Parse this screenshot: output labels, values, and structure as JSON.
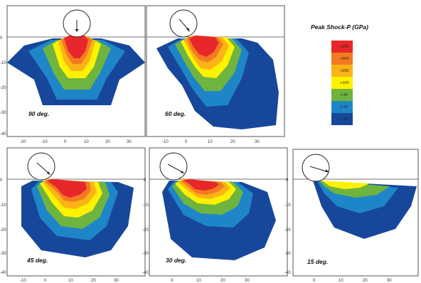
{
  "legend": {
    "title": "Peak Shock-P (GPa)",
    "items": [
      {
        "label": ">250",
        "color": "#e8272a"
      },
      {
        "label": ">200",
        "color": "#f47a21"
      },
      {
        "label": ">150",
        "color": "#fbb316"
      },
      {
        "label": ">100",
        "color": "#fff200"
      },
      {
        "label": "> 50",
        "color": "#6fb43f"
      },
      {
        "label": "> 30",
        "color": "#1e86c8"
      },
      {
        "label": "> 10",
        "color": "#17479b"
      }
    ]
  },
  "panels": [
    {
      "id": "p90",
      "label": "90 deg.",
      "angle": 90,
      "y_ticks": [
        "0",
        "-10",
        "-20",
        "-30",
        "-40"
      ],
      "x_ticks": [
        "-20",
        "-10",
        "0",
        "10",
        "20",
        "30"
      ]
    },
    {
      "id": "p60",
      "label": "60 deg.",
      "angle": 60,
      "y_ticks": [],
      "x_ticks": [
        "-10",
        "0",
        "10",
        "20",
        "30"
      ]
    },
    {
      "id": "p45",
      "label": "45 deg.",
      "angle": 45,
      "y_ticks": [
        "0",
        "-10",
        "-20",
        "-30",
        "-40"
      ],
      "x_ticks": [
        "-10",
        "0",
        "10",
        "20",
        "30"
      ]
    },
    {
      "id": "p30",
      "label": "30 deg.",
      "angle": 30,
      "y_ticks": [
        "0",
        "-10",
        "-20",
        "-30",
        "-40"
      ],
      "x_ticks": [
        "0",
        "10",
        "20",
        "30"
      ]
    },
    {
      "id": "p15",
      "label": "15 deg.",
      "angle": 15,
      "y_ticks": [
        "0",
        "-10",
        "-20",
        "-30",
        "-40"
      ],
      "x_ticks": [
        "0",
        "10",
        "20",
        "30"
      ]
    }
  ]
}
